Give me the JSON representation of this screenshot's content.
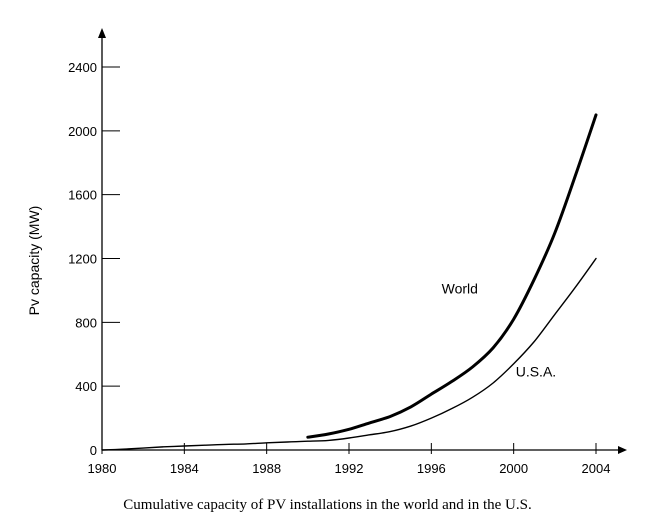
{
  "chart_data": {
    "type": "line",
    "caption": "Cumulative capacity of PV installations in the world and in the U.S.",
    "ylabel": "Pv capacity (MW)",
    "xlabel": "",
    "xlim": [
      1980,
      2004
    ],
    "ylim": [
      0,
      2400
    ],
    "x_ticks": [
      1980,
      1984,
      1988,
      1992,
      1996,
      2000,
      2004
    ],
    "y_ticks": [
      0,
      400,
      800,
      1200,
      1600,
      2000,
      2400
    ],
    "grid": false,
    "legend": "inline labels",
    "series": [
      {
        "name": "World",
        "color": "#000000",
        "style": "thick",
        "x": [
          1990,
          1991,
          1992,
          1993,
          1994,
          1995,
          1996,
          1997,
          1998,
          1999,
          2000,
          2001,
          2002,
          2003,
          2004
        ],
        "y": [
          80,
          100,
          130,
          170,
          210,
          270,
          350,
          430,
          520,
          640,
          820,
          1070,
          1360,
          1720,
          2100
        ]
      },
      {
        "name": "U.S.A.",
        "color": "#000000",
        "style": "thin",
        "x": [
          1980,
          1981,
          1982,
          1983,
          1984,
          1985,
          1986,
          1987,
          1988,
          1989,
          1990,
          1991,
          1992,
          1993,
          1994,
          1995,
          1996,
          1997,
          1998,
          1999,
          2000,
          2001,
          2002,
          2003,
          2004
        ],
        "y": [
          0,
          5,
          12,
          20,
          25,
          30,
          35,
          38,
          45,
          50,
          55,
          60,
          75,
          95,
          115,
          150,
          200,
          260,
          330,
          420,
          540,
          680,
          850,
          1020,
          1200
        ]
      }
    ]
  }
}
